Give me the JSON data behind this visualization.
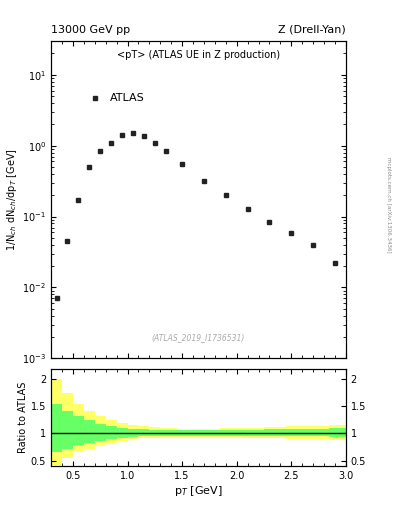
{
  "title_top_left": "13000 GeV pp",
  "title_top_right": "Z (Drell-Yan)",
  "legend_label": "<pT> (ATLAS UE in Z production)",
  "atlas_label": "ATLAS",
  "watermark": "(ATLAS_2019_I1736531)",
  "right_label": "mcplots.cern.ch [arXiv:1306.3436]",
  "ylabel_main": "1/N$_{ch}$ dN$_{ch}$/dp$_T$ [GeV]",
  "ylabel_ratio": "Ratio to ATLAS",
  "xlabel": "p$_T$ [GeV]",
  "xlim": [
    0.3,
    3.0
  ],
  "ylim_main_lo": 0.001,
  "ylim_main_hi": 30,
  "ylim_ratio": [
    0.4,
    2.2
  ],
  "data_x": [
    0.35,
    0.45,
    0.55,
    0.65,
    0.75,
    0.85,
    0.95,
    1.05,
    1.15,
    1.25,
    1.35,
    1.5,
    1.7,
    1.9,
    2.1,
    2.3,
    2.5,
    2.7,
    2.9
  ],
  "data_y": [
    0.007,
    0.045,
    0.17,
    0.5,
    0.85,
    1.1,
    1.4,
    1.5,
    1.35,
    1.1,
    0.85,
    0.55,
    0.32,
    0.2,
    0.13,
    0.085,
    0.058,
    0.04,
    0.022
  ],
  "ratio_x_edges": [
    0.3,
    0.4,
    0.5,
    0.6,
    0.7,
    0.8,
    0.9,
    1.0,
    1.1,
    1.2,
    1.3,
    1.45,
    1.65,
    1.85,
    2.05,
    2.25,
    2.45,
    2.65,
    2.85,
    3.0
  ],
  "ratio_yellow_lo": [
    0.42,
    0.55,
    0.65,
    0.72,
    0.78,
    0.83,
    0.87,
    0.9,
    0.91,
    0.92,
    0.93,
    0.94,
    0.94,
    0.93,
    0.92,
    0.91,
    0.9,
    0.89,
    0.88
  ],
  "ratio_yellow_hi": [
    2.0,
    1.75,
    1.55,
    1.42,
    1.32,
    1.25,
    1.2,
    1.16,
    1.14,
    1.12,
    1.1,
    1.09,
    1.09,
    1.1,
    1.11,
    1.12,
    1.13,
    1.14,
    1.16
  ],
  "ratio_green_lo": [
    0.65,
    0.72,
    0.78,
    0.83,
    0.87,
    0.9,
    0.92,
    0.94,
    0.95,
    0.95,
    0.96,
    0.96,
    0.96,
    0.96,
    0.96,
    0.96,
    0.95,
    0.95,
    0.94
  ],
  "ratio_green_hi": [
    1.55,
    1.42,
    1.32,
    1.25,
    1.18,
    1.14,
    1.11,
    1.09,
    1.08,
    1.07,
    1.06,
    1.06,
    1.06,
    1.07,
    1.07,
    1.08,
    1.08,
    1.09,
    1.1
  ],
  "marker_color": "#222222",
  "yellow_color": "#ffff66",
  "green_color": "#66ff66",
  "line_color": "#000000",
  "ratio_yticks": [
    0.5,
    1.0,
    1.5,
    2.0
  ],
  "ratio_ytick_labels": [
    "0.5",
    "1",
    "1.5",
    "2"
  ]
}
